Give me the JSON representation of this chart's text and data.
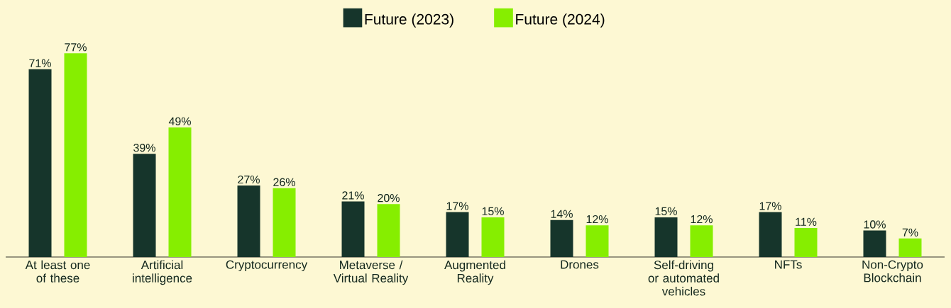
{
  "chart_data": {
    "type": "bar",
    "categories": [
      "At least one of these",
      "Artificial intelligence",
      "Cryptocurrency",
      "Metaverse / Virtual Reality",
      "Augmented Reality",
      "Drones",
      "Self-driving or automated vehicles",
      "NFTs",
      "Non-Crypto Blockchain"
    ],
    "series": [
      {
        "name": "Future (2023)",
        "color": "#16352b",
        "values": [
          71,
          39,
          27,
          21,
          17,
          14,
          15,
          17,
          10
        ],
        "value_labels": [
          "71%",
          "39%",
          "27%",
          "21%",
          "17%",
          "14%",
          "15%",
          "17%",
          "10%"
        ]
      },
      {
        "name": "Future (2024)",
        "color": "#86ee00",
        "values": [
          77,
          49,
          26,
          20,
          15,
          12,
          12,
          11,
          7
        ],
        "value_labels": [
          "77%",
          "49%",
          "26%",
          "20%",
          "15%",
          "12%",
          "12%",
          "11%",
          "7%"
        ]
      }
    ],
    "legend": "top"
  }
}
